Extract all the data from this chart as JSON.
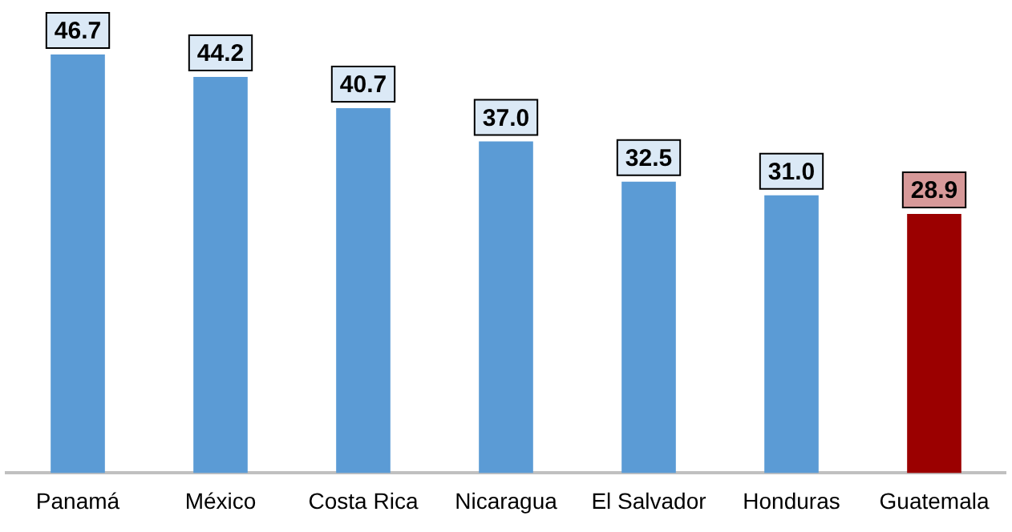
{
  "chart_data": {
    "type": "bar",
    "categories": [
      "Panamá",
      "México",
      "Costa Rica",
      "Nicaragua",
      "El Salvador",
      "Honduras",
      "Guatemala"
    ],
    "values": [
      46.7,
      44.2,
      40.7,
      37.0,
      32.5,
      31.0,
      28.9
    ],
    "colors": [
      "#5b9bd5",
      "#5b9bd5",
      "#5b9bd5",
      "#5b9bd5",
      "#5b9bd5",
      "#5b9bd5",
      "#9b0000"
    ],
    "value_labels": [
      "46.7",
      "44.2",
      "40.7",
      "37.0",
      "32.5",
      "31.0",
      "28.9"
    ],
    "grid": false,
    "legend": false,
    "tick_labels": "x"
  }
}
